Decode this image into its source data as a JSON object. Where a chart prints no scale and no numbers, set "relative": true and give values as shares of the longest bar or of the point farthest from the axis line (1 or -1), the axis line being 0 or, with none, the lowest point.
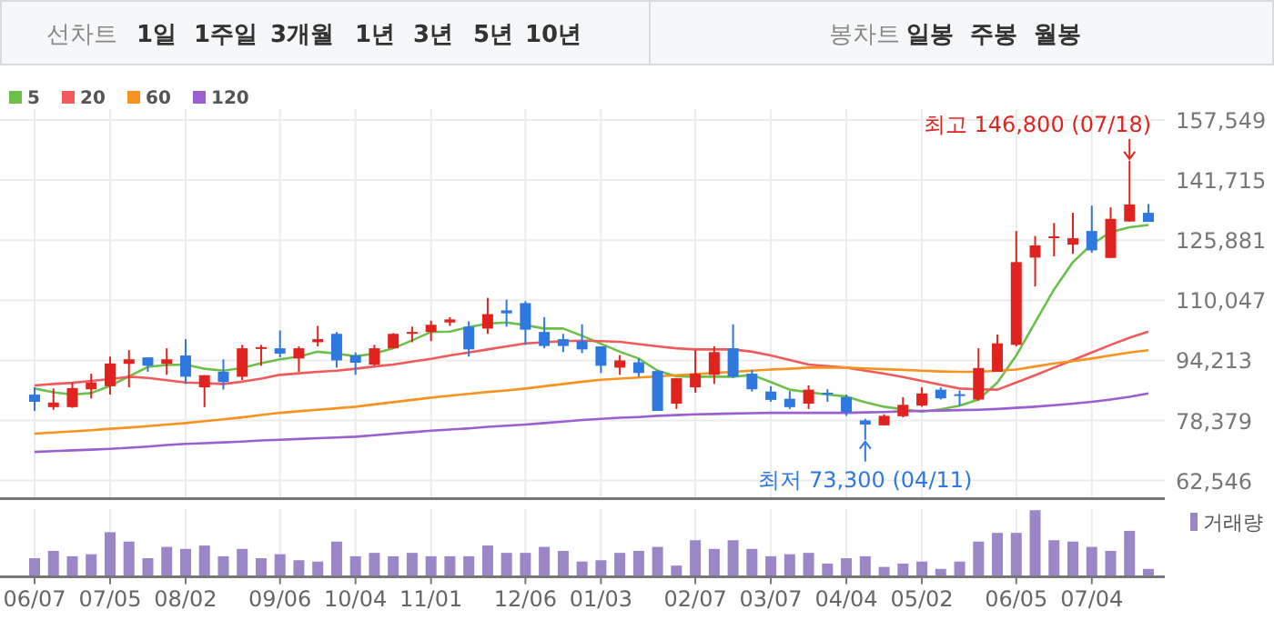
{
  "chart_data": [
    {
      "type": "other",
      "annotations": [
        "선차트",
        "1일",
        "1주일",
        "3개월",
        "1년",
        "3년",
        "5년",
        "10년",
        "봉차트",
        "일봉",
        "주봉",
        "월봉"
      ]
    },
    {
      "type": "candlestick",
      "categories": [
        null,
        null,
        null,
        null,
        null,
        null,
        null,
        null,
        null,
        null,
        null,
        null,
        null,
        null,
        null,
        null,
        null,
        null,
        null,
        null,
        null,
        null,
        null,
        null,
        null,
        null,
        null,
        null,
        null,
        null,
        null,
        null,
        null,
        null,
        null,
        null,
        null,
        null,
        null,
        null,
        null,
        null,
        null,
        null,
        null,
        null,
        null,
        null,
        null,
        null,
        null,
        null,
        null,
        null,
        null,
        null,
        null,
        null,
        null,
        null
      ],
      "ohlc": [
        [
          85200,
          87100,
          80900,
          83300
        ],
        [
          81900,
          86800,
          81200,
          83100
        ],
        [
          81900,
          88400,
          81700,
          86900
        ],
        [
          86600,
          90700,
          84200,
          88400
        ],
        [
          87400,
          95200,
          85200,
          93400
        ],
        [
          93300,
          96900,
          87100,
          94500
        ],
        [
          95000,
          95000,
          91200,
          92800
        ],
        [
          93300,
          97400,
          90400,
          94500
        ],
        [
          95500,
          99800,
          88000,
          89900
        ],
        [
          87100,
          90300,
          81900,
          90300
        ],
        [
          91200,
          94500,
          86500,
          88500
        ],
        [
          89900,
          98300,
          89000,
          97400
        ],
        [
          97400,
          98300,
          92800,
          97700
        ],
        [
          97400,
          102100,
          95000,
          96000
        ],
        [
          94700,
          97900,
          91200,
          97400
        ],
        [
          99000,
          103300,
          97900,
          99800
        ],
        [
          101200,
          101700,
          92300,
          94200
        ],
        [
          95500,
          96300,
          90400,
          93600
        ],
        [
          93100,
          98300,
          92800,
          97400
        ],
        [
          97400,
          101400,
          97400,
          101200
        ],
        [
          101200,
          103100,
          99000,
          101700
        ],
        [
          101700,
          104700,
          99300,
          103600
        ],
        [
          104200,
          105600,
          103300,
          105000
        ],
        [
          103100,
          104500,
          95200,
          97100
        ],
        [
          102600,
          110700,
          101200,
          106400
        ],
        [
          107400,
          110200,
          103100,
          106600
        ],
        [
          109300,
          109800,
          98300,
          102300
        ],
        [
          101700,
          105600,
          97400,
          98000
        ],
        [
          99800,
          101200,
          96400,
          98000
        ],
        [
          99300,
          103700,
          96100,
          97100
        ],
        [
          97900,
          97900,
          90900,
          92800
        ],
        [
          92300,
          95600,
          90400,
          94200
        ],
        [
          93700,
          94700,
          89900,
          90900
        ],
        [
          91400,
          91700,
          80900,
          80900
        ],
        [
          82800,
          89500,
          81400,
          89500
        ],
        [
          87100,
          96900,
          85700,
          90700
        ],
        [
          90400,
          97900,
          88000,
          96400
        ],
        [
          97400,
          103700,
          89600,
          89900
        ],
        [
          90700,
          91700,
          86000,
          86600
        ],
        [
          86000,
          87400,
          83300,
          83800
        ],
        [
          84100,
          86100,
          81400,
          81900
        ],
        [
          82800,
          87600,
          81400,
          86500
        ],
        [
          85700,
          86600,
          83300,
          85300
        ],
        [
          84500,
          85200,
          79600,
          80600
        ],
        [
          78400,
          78800,
          73300,
          77300
        ],
        [
          77100,
          80000,
          77100,
          79600
        ],
        [
          79500,
          84500,
          79200,
          82500
        ],
        [
          82300,
          87100,
          82000,
          85500
        ],
        [
          86500,
          87100,
          83900,
          84200
        ],
        [
          85300,
          86300,
          82300,
          85000
        ],
        [
          83900,
          97400,
          83600,
          92200
        ],
        [
          91200,
          101000,
          91200,
          98700
        ],
        [
          98300,
          128300,
          97900,
          120100
        ],
        [
          121300,
          127000,
          113700,
          124500
        ],
        [
          126400,
          130400,
          121600,
          126900
        ],
        [
          124700,
          133100,
          122300,
          126400
        ],
        [
          128300,
          135000,
          122600,
          123200
        ],
        [
          121200,
          134500,
          121200,
          131500
        ],
        [
          130800,
          146800,
          130800,
          135300
        ],
        [
          133100,
          135400,
          130700,
          130700
        ]
      ],
      "series": [
        {
          "type": "line",
          "name": "5",
          "color": "#6cc04a",
          "values": [
            86800,
            85800,
            85200,
            85600,
            87500,
            90000,
            92500,
            93000,
            93100,
            92000,
            91500,
            92200,
            93500,
            94500,
            95200,
            96500,
            96000,
            95300,
            96000,
            97400,
            99500,
            101700,
            101800,
            103000,
            103900,
            104200,
            103500,
            102600,
            102600,
            100700,
            98600,
            96500,
            94700,
            91500,
            90000,
            89900,
            89900,
            89900,
            90400,
            88500,
            86500,
            85800,
            85200,
            84700,
            83200,
            82000,
            81300,
            80700,
            81300,
            82300,
            83900,
            88400,
            95500,
            104200,
            112900,
            120100,
            124800,
            128000,
            129300,
            129900
          ]
        },
        {
          "type": "line",
          "name": "20",
          "color": "#f05a5a",
          "values": [
            87600,
            88000,
            88300,
            88800,
            89300,
            89900,
            89600,
            89000,
            88400,
            88200,
            88000,
            88600,
            89400,
            90400,
            90800,
            91200,
            91500,
            92000,
            92600,
            93100,
            93900,
            94600,
            95500,
            96300,
            97100,
            97900,
            98700,
            99000,
            99300,
            99400,
            99300,
            99100,
            98500,
            97900,
            97400,
            97100,
            97100,
            97100,
            96500,
            95500,
            94300,
            93100,
            92700,
            92300,
            91500,
            90700,
            89800,
            88800,
            87800,
            86800,
            86600,
            86500,
            88400,
            90300,
            92300,
            94300,
            96300,
            98300,
            100200,
            101800
          ]
        },
        {
          "type": "line",
          "name": "60",
          "color": "#f7931e",
          "values": [
            74900,
            75200,
            75500,
            75800,
            76200,
            76500,
            76900,
            77300,
            77700,
            78200,
            78700,
            79200,
            79800,
            80400,
            80800,
            81200,
            81600,
            82000,
            82600,
            83200,
            83800,
            84400,
            84900,
            85400,
            85900,
            86300,
            86800,
            87400,
            88000,
            88600,
            89100,
            89400,
            89700,
            90000,
            90300,
            90600,
            90900,
            91200,
            91500,
            91800,
            92000,
            92300,
            92300,
            92300,
            92100,
            91900,
            91700,
            91500,
            91300,
            91200,
            91200,
            91500,
            91800,
            92600,
            93400,
            94000,
            94700,
            95500,
            96300,
            96900
          ]
        },
        {
          "type": "line",
          "name": "120",
          "color": "#9a5fd0",
          "values": [
            70100,
            70300,
            70500,
            70700,
            70900,
            71200,
            71500,
            71900,
            72200,
            72400,
            72600,
            72800,
            73100,
            73300,
            73500,
            73700,
            73900,
            74100,
            74500,
            74900,
            75300,
            75700,
            76000,
            76300,
            76700,
            77000,
            77300,
            77700,
            78100,
            78500,
            78800,
            79100,
            79300,
            79600,
            79800,
            80000,
            80100,
            80200,
            80300,
            80400,
            80400,
            80400,
            80400,
            80400,
            80500,
            80600,
            80800,
            80900,
            81000,
            81100,
            81200,
            81400,
            81700,
            82000,
            82400,
            82800,
            83300,
            83900,
            84600,
            85500
          ]
        }
      ],
      "ylim": [
        57760,
        157549
      ],
      "yticks": [
        {
          "value": 62546,
          "label": "62,546"
        },
        {
          "value": 78379,
          "label": "78,379"
        },
        {
          "value": 94213,
          "label": "94,213"
        },
        {
          "value": 110047,
          "label": "110,047"
        },
        {
          "value": 125881,
          "label": "125,881"
        },
        {
          "value": 141715,
          "label": "141,715"
        },
        {
          "value": 157549,
          "label": "157,549"
        }
      ],
      "grid": true,
      "legend": "top left",
      "tick_labels": "y",
      "annotations": [
        "최고 146,800 (07/18)",
        "최저 73,300 (04/11)"
      ]
    },
    {
      "type": "bar",
      "relative": true,
      "categories": [
        "06/07",
        null,
        null,
        null,
        "07/05",
        null,
        null,
        null,
        "08/02",
        null,
        null,
        null,
        null,
        "09/06",
        null,
        null,
        null,
        "10/04",
        null,
        null,
        null,
        "11/01",
        null,
        null,
        null,
        null,
        "12/06",
        null,
        null,
        null,
        "01/03",
        null,
        null,
        null,
        null,
        "02/07",
        null,
        null,
        null,
        "03/07",
        null,
        null,
        null,
        "04/04",
        null,
        null,
        null,
        "05/02",
        null,
        null,
        null,
        null,
        "06/05",
        null,
        null,
        null,
        "07/04",
        null,
        null,
        null
      ],
      "series": [
        {
          "name": "거래량",
          "color": "#9b87c8",
          "values": [
            0.28,
            0.39,
            0.31,
            0.34,
            0.67,
            0.53,
            0.28,
            0.45,
            0.42,
            0.47,
            0.31,
            0.42,
            0.28,
            0.34,
            0.25,
            0.23,
            0.53,
            0.31,
            0.36,
            0.31,
            0.36,
            0.31,
            0.31,
            0.31,
            0.47,
            0.36,
            0.36,
            0.45,
            0.39,
            0.23,
            0.25,
            0.36,
            0.39,
            0.45,
            0.17,
            0.55,
            0.42,
            0.55,
            0.42,
            0.31,
            0.34,
            0.36,
            0.2,
            0.28,
            0.31,
            0.15,
            0.2,
            0.23,
            0.12,
            0.23,
            0.53,
            0.66,
            0.66,
            1,
            0.55,
            0.53,
            0.45,
            0.39,
            0.69,
            0.12
          ]
        }
      ],
      "grid": "x",
      "legend": "top right",
      "tick_labels": "x"
    }
  ]
}
